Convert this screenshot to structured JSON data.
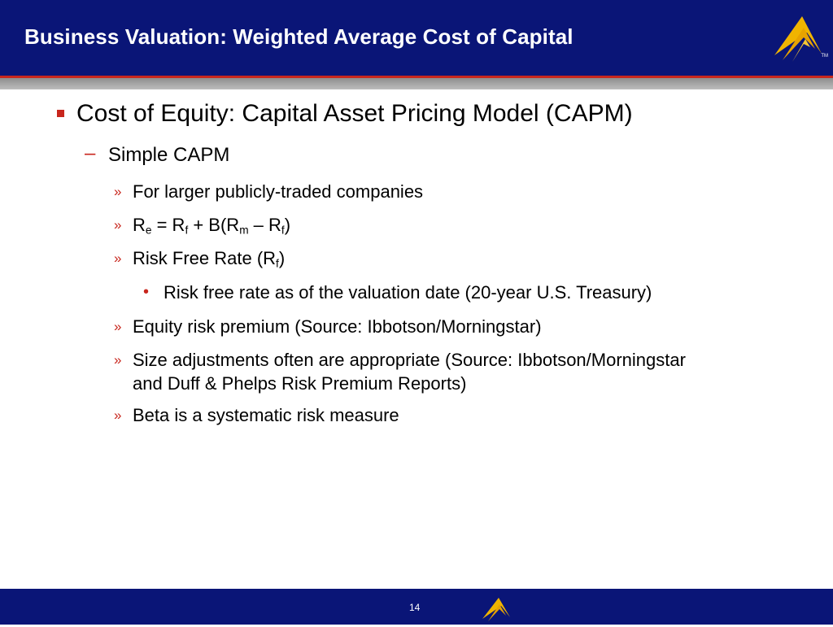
{
  "slide": {
    "title": "Business Valuation: Weighted Average Cost of Capital",
    "page_number": "14",
    "logo_tm": "TM"
  },
  "bullets": {
    "l1": "Cost of Equity: Capital Asset Pricing Model (CAPM)",
    "l2": "Simple CAPM",
    "i1": "For larger publicly-traded companies",
    "formula": {
      "r": "R",
      "e": "e",
      "eq": " = R",
      "f1": "f",
      "plus": " + B(R",
      "m": "m",
      "minus": " – R",
      "f2": "f",
      "close": ")"
    },
    "risk_free": {
      "text": " Risk Free Rate (R",
      "sub": "f",
      "close": ")"
    },
    "sub1": "Risk free rate as of the valuation date (20-year U.S. Treasury)",
    "i4": "Equity risk premium (Source: Ibbotson/Morningstar)",
    "i5a": "Size adjustments often are appropriate (Source: Ibbotson/Morningstar",
    "i5b": "and Duff & Phelps Risk Premium Reports)",
    "i6": "Beta is a systematic risk measure"
  },
  "markers": {
    "dash": "–",
    "raquo": "»",
    "dot": "•"
  },
  "colors": {
    "header_bg": "#0a1577",
    "accent_red": "#c8261d",
    "logo_gold": "#f0b400"
  }
}
